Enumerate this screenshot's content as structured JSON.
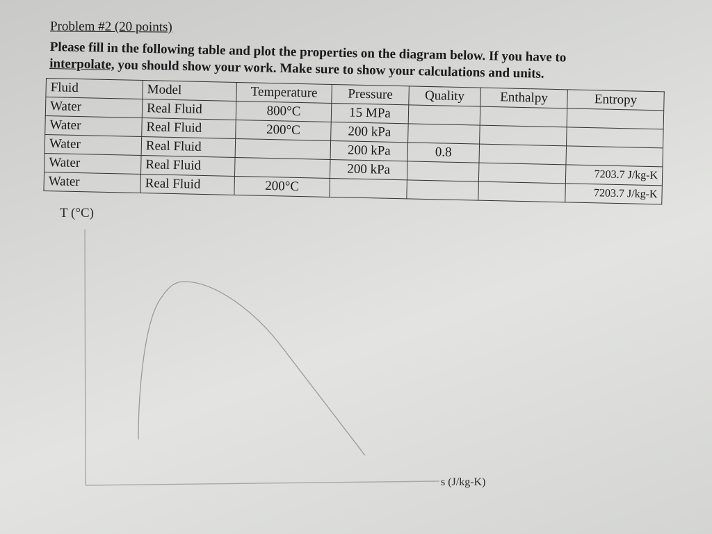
{
  "problem": {
    "title": "Problem #2 (20 points)",
    "instructions_line1": "Please fill in the following table and plot the properties on the diagram below.  If you have to",
    "instructions_line2_underlined": "interpolate,",
    "instructions_line2_rest": " you should show your work.  Make sure to show your calculations and units."
  },
  "table": {
    "headers": [
      "Fluid",
      "Model",
      "Temperature",
      "Pressure",
      "Quality",
      "Enthalpy",
      "Entropy"
    ],
    "rows": [
      [
        "Water",
        "Real Fluid",
        "800°C",
        "15 MPa",
        "",
        "",
        ""
      ],
      [
        "Water",
        "Real Fluid",
        "200°C",
        "200 kPa",
        "",
        "",
        ""
      ],
      [
        "Water",
        "Real Fluid",
        "",
        "200 kPa",
        "0.8",
        "",
        ""
      ],
      [
        "Water",
        "Real Fluid",
        "",
        "200 kPa",
        "",
        "",
        "7203.7 J/kg-K"
      ],
      [
        "Water",
        "Real Fluid",
        "200°C",
        "",
        "",
        "",
        "7203.7 J/kg-K"
      ]
    ]
  },
  "diagram": {
    "y_axis_label": "T (°C)",
    "x_axis_label": "s (J/kg-K)"
  }
}
